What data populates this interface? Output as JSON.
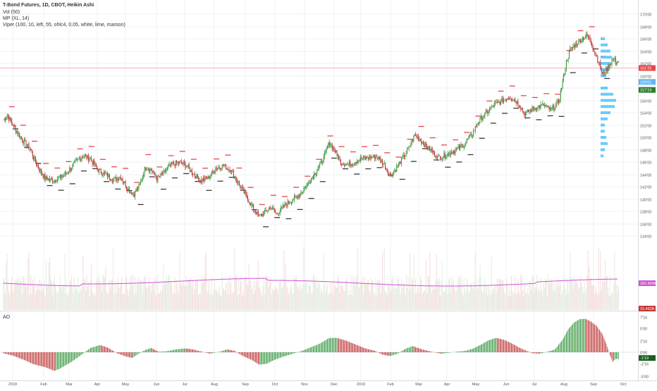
{
  "header": {
    "title": "T-Bond Futures, 1D, CBOT, Heikin Ashi",
    "vol": "Vol (50)",
    "mp": "MP (XL, 14)",
    "viper": "Viper (100, 10, left, 55, ohlc4, 0.05, white, lime, maroon)"
  },
  "lower_pane": {
    "label": "AO"
  },
  "colors": {
    "up": "#3c9a45",
    "down": "#c03a3a",
    "vol_up": "#e7efe6",
    "vol_down": "#f6e1e1",
    "vol_ma": "#d14fd6",
    "level_red": "#e5474b",
    "level_dark": "#3a3a3a",
    "profile": "#4fc3f7",
    "grid": "#eef0f3",
    "hline": "#f2b1b3"
  },
  "chart_data": [
    {
      "type": "candlestick",
      "title": "T-Bond Futures, 1D, CBOT, Heikin Ashi",
      "x_tick_labels": [
        "2018",
        "Feb",
        "Mar",
        "Apr",
        "May",
        "Jun",
        "Jul",
        "Aug",
        "Sep",
        "Oct",
        "Nov",
        "Dec",
        "2019",
        "Feb",
        "Mar",
        "Apr",
        "May",
        "Jun",
        "Jul",
        "Aug",
        "Sep",
        "Oct"
      ],
      "y_tick_labels": [
        "170'00",
        "168'00",
        "166'00",
        "164'00",
        "162'00",
        "160'00",
        "158'00",
        "156'00",
        "154'00",
        "152'00",
        "150'00",
        "148'00",
        "146'00",
        "144'00",
        "142'00",
        "140'00",
        "138'00",
        "136'00",
        "134'00"
      ],
      "ylim": [
        133.5,
        171.2
      ],
      "price_anchors": [
        [
          0,
          152.8
        ],
        [
          4,
          153.6
        ],
        [
          12,
          151.5
        ],
        [
          20,
          149.6
        ],
        [
          28,
          148.2
        ],
        [
          36,
          145.3
        ],
        [
          44,
          143.4
        ],
        [
          52,
          143.0
        ],
        [
          60,
          143.5
        ],
        [
          68,
          144.4
        ],
        [
          76,
          146.0
        ],
        [
          84,
          147.0
        ],
        [
          92,
          146.5
        ],
        [
          100,
          144.7
        ],
        [
          108,
          144.0
        ],
        [
          116,
          143.1
        ],
        [
          124,
          143.6
        ],
        [
          132,
          141.5
        ],
        [
          138,
          140.8
        ],
        [
          144,
          142.3
        ],
        [
          150,
          145.3
        ],
        [
          156,
          144.7
        ],
        [
          162,
          143.3
        ],
        [
          168,
          144.0
        ],
        [
          176,
          145.5
        ],
        [
          184,
          145.9
        ],
        [
          192,
          145.6
        ],
        [
          200,
          144.2
        ],
        [
          208,
          143.0
        ],
        [
          216,
          143.4
        ],
        [
          224,
          145.0
        ],
        [
          232,
          145.4
        ],
        [
          240,
          144.7
        ],
        [
          248,
          142.6
        ],
        [
          256,
          140.5
        ],
        [
          264,
          138.4
        ],
        [
          270,
          137.2
        ],
        [
          276,
          137.8
        ],
        [
          282,
          138.7
        ],
        [
          288,
          137.6
        ],
        [
          294,
          138.5
        ],
        [
          302,
          139.6
        ],
        [
          310,
          140.4
        ],
        [
          318,
          141.8
        ],
        [
          326,
          143.6
        ],
        [
          332,
          145.0
        ],
        [
          338,
          146.6
        ],
        [
          344,
          149.2
        ],
        [
          350,
          147.8
        ],
        [
          356,
          146.0
        ],
        [
          362,
          145.6
        ],
        [
          370,
          145.9
        ],
        [
          378,
          146.6
        ],
        [
          386,
          146.7
        ],
        [
          394,
          146.9
        ],
        [
          402,
          145.6
        ],
        [
          408,
          143.7
        ],
        [
          414,
          144.9
        ],
        [
          420,
          146.3
        ],
        [
          428,
          148.3
        ],
        [
          434,
          150.4
        ],
        [
          440,
          149.6
        ],
        [
          446,
          148.5
        ],
        [
          452,
          147.8
        ],
        [
          458,
          146.8
        ],
        [
          464,
          146.9
        ],
        [
          470,
          147.4
        ],
        [
          478,
          148.0
        ],
        [
          486,
          148.9
        ],
        [
          494,
          150.4
        ],
        [
          502,
          152.7
        ],
        [
          510,
          154.0
        ],
        [
          518,
          155.3
        ],
        [
          526,
          155.9
        ],
        [
          532,
          156.5
        ],
        [
          538,
          156.3
        ],
        [
          544,
          155.4
        ],
        [
          550,
          153.8
        ],
        [
          556,
          154.4
        ],
        [
          562,
          154.9
        ],
        [
          570,
          155.2
        ],
        [
          578,
          154.4
        ],
        [
          586,
          155.8
        ],
        [
          590,
          158.9
        ],
        [
          594,
          162.2
        ],
        [
          598,
          164.2
        ],
        [
          604,
          165.1
        ],
        [
          610,
          166.0
        ],
        [
          616,
          166.5
        ],
        [
          620,
          165.6
        ],
        [
          624,
          163.8
        ],
        [
          628,
          162.3
        ],
        [
          632,
          160.2
        ],
        [
          636,
          160.9
        ],
        [
          640,
          161.9
        ],
        [
          644,
          162.8
        ],
        [
          646,
          162.3
        ]
      ],
      "current_price": "161'25",
      "price_labels": [
        "161'25",
        "159'01",
        "157'24"
      ],
      "volume_labels": [
        "265.899K",
        "15.462K"
      ]
    },
    {
      "type": "bar",
      "title": "AO",
      "y_tick_labels": [
        "7'16",
        "5'00",
        "2'16",
        "0'00",
        "-2'16",
        "-5'00"
      ],
      "ylim": [
        -6.0,
        8.2
      ],
      "current_label": "-1'19",
      "ao_anchors": [
        [
          0,
          -0.2
        ],
        [
          10,
          -0.7
        ],
        [
          22,
          -1.6
        ],
        [
          32,
          -2.5
        ],
        [
          44,
          -3.1
        ],
        [
          54,
          -3.9
        ],
        [
          60,
          -3.4
        ],
        [
          72,
          -2.0
        ],
        [
          82,
          -0.6
        ],
        [
          92,
          0.9
        ],
        [
          102,
          1.5
        ],
        [
          110,
          1.0
        ],
        [
          120,
          -0.2
        ],
        [
          128,
          -0.8
        ],
        [
          136,
          -1.2
        ],
        [
          142,
          -0.4
        ],
        [
          150,
          0.5
        ],
        [
          156,
          0.9
        ],
        [
          164,
          0.1
        ],
        [
          172,
          0.2
        ],
        [
          182,
          0.6
        ],
        [
          192,
          0.8
        ],
        [
          200,
          0.6
        ],
        [
          210,
          0.1
        ],
        [
          218,
          -0.3
        ],
        [
          228,
          0.1
        ],
        [
          236,
          0.6
        ],
        [
          244,
          0.3
        ],
        [
          252,
          -0.7
        ],
        [
          262,
          -1.6
        ],
        [
          270,
          -2.6
        ],
        [
          278,
          -2.4
        ],
        [
          286,
          -1.6
        ],
        [
          294,
          -1.0
        ],
        [
          304,
          -0.4
        ],
        [
          314,
          0.2
        ],
        [
          324,
          1.0
        ],
        [
          334,
          1.8
        ],
        [
          344,
          3.0
        ],
        [
          352,
          3.0
        ],
        [
          362,
          2.4
        ],
        [
          372,
          1.6
        ],
        [
          382,
          0.8
        ],
        [
          392,
          0.3
        ],
        [
          400,
          -0.5
        ],
        [
          408,
          -0.8
        ],
        [
          416,
          -0.3
        ],
        [
          424,
          0.7
        ],
        [
          432,
          1.3
        ],
        [
          442,
          0.6
        ],
        [
          452,
          0.1
        ],
        [
          462,
          -0.3
        ],
        [
          470,
          -0.1
        ],
        [
          478,
          0.1
        ],
        [
          488,
          0.3
        ],
        [
          496,
          0.8
        ],
        [
          504,
          1.6
        ],
        [
          512,
          2.5
        ],
        [
          520,
          3.0
        ],
        [
          528,
          2.6
        ],
        [
          536,
          1.9
        ],
        [
          544,
          1.0
        ],
        [
          552,
          0.3
        ],
        [
          558,
          -0.2
        ],
        [
          566,
          -0.3
        ],
        [
          574,
          0.1
        ],
        [
          582,
          0.6
        ],
        [
          590,
          2.6
        ],
        [
          596,
          4.8
        ],
        [
          602,
          6.2
        ],
        [
          608,
          6.9
        ],
        [
          614,
          7.0
        ],
        [
          620,
          6.4
        ],
        [
          626,
          5.5
        ],
        [
          632,
          3.8
        ],
        [
          636,
          1.8
        ],
        [
          640,
          -0.6
        ],
        [
          643,
          -2.0
        ],
        [
          646,
          -1.4
        ]
      ]
    }
  ]
}
